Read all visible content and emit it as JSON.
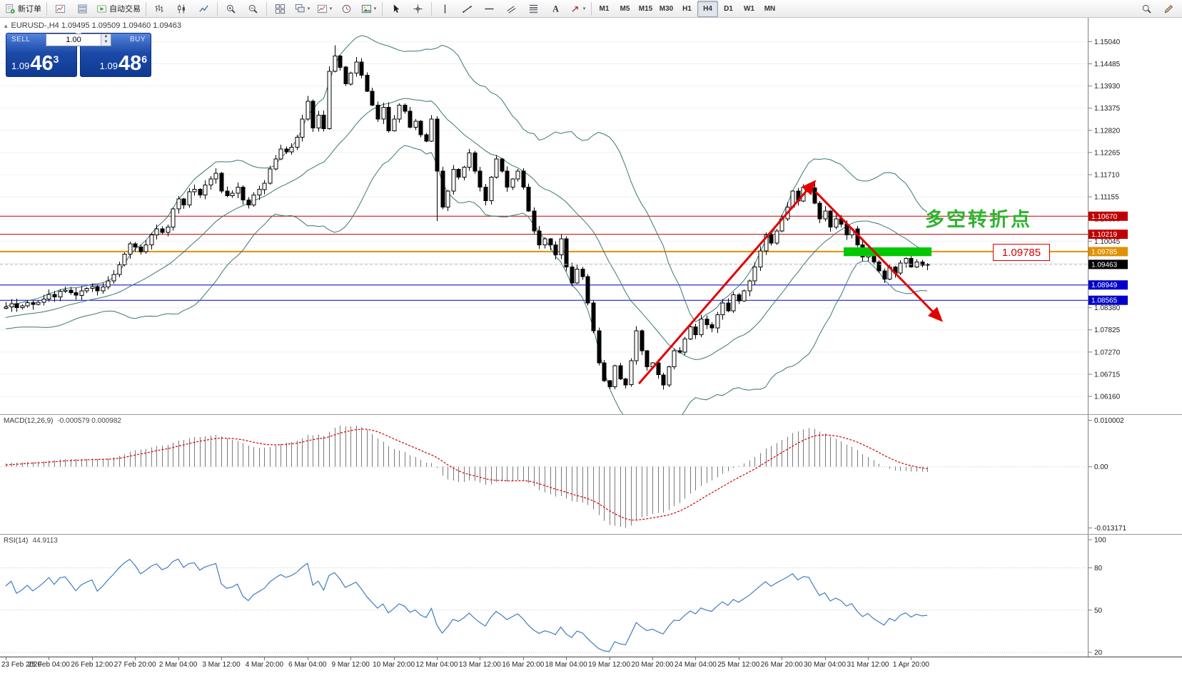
{
  "toolbar": {
    "groups": [
      [
        {
          "name": "new-order",
          "icon": "new-order",
          "label": "新订单"
        }
      ],
      [
        {
          "name": "charts",
          "icon": "chart-add"
        },
        {
          "name": "market-depth",
          "icon": "dom"
        },
        {
          "name": "autotrading",
          "icon": "autotrading",
          "label": "自动交易"
        }
      ],
      [
        {
          "name": "bar-chart-mode",
          "icon": "bar-chart"
        },
        {
          "name": "candlestick-mode",
          "icon": "candle-chart"
        },
        {
          "name": "line-chart-mode",
          "icon": "line-chart"
        }
      ],
      [
        {
          "name": "zoom-in",
          "icon": "zoom-in"
        },
        {
          "name": "zoom-out",
          "icon": "zoom-out"
        }
      ],
      [
        {
          "name": "tile-windows",
          "icon": "tile"
        },
        {
          "name": "auto-arrange",
          "icon": "cascade",
          "caret": true
        },
        {
          "name": "new-chart",
          "icon": "chart-add",
          "caret": true
        },
        {
          "name": "period-clock",
          "icon": "clock"
        },
        {
          "name": "templates",
          "icon": "template",
          "caret": true
        }
      ],
      [
        {
          "name": "cursor",
          "icon": "cursor"
        },
        {
          "name": "crosshair",
          "icon": "crosshair"
        }
      ],
      [
        {
          "name": "vertical-line",
          "icon": "vline"
        },
        {
          "name": "trendline",
          "icon": "trendline"
        },
        {
          "name": "horizontal-line",
          "icon": "hline"
        },
        {
          "name": "equidistant-channel",
          "icon": "channel"
        },
        {
          "name": "fibonacci",
          "icon": "fibo"
        },
        {
          "name": "text-label",
          "icon": "text"
        },
        {
          "name": "arrows",
          "icon": "arrows-tool",
          "caret": true
        }
      ]
    ],
    "timeframes": {
      "items": [
        "M1",
        "M5",
        "M15",
        "M30",
        "H1",
        "H4",
        "D1",
        "W1",
        "MN"
      ],
      "active": "H4"
    },
    "right": [
      {
        "name": "search",
        "icon": "search"
      },
      {
        "name": "quick-edit",
        "icon": "edit"
      }
    ]
  },
  "chart": {
    "title": "EURUSD-,H4 1.09495 1.09509 1.09460 1.09463",
    "toggle_glyph": "▴",
    "one_click": {
      "sell_label": "SELL",
      "buy_label": "BUY",
      "lot": "1.00",
      "sell_small": "1.09",
      "sell_big": "46",
      "sell_sup": "3",
      "buy_small": "1.09",
      "buy_big": "48",
      "buy_sup": "6"
    },
    "price_axis": {
      "max": 1.156,
      "min": 1.0575,
      "ticks": [
        "1.15040",
        "1.14485",
        "1.13930",
        "1.13375",
        "1.12820",
        "1.12265",
        "1.11710",
        "1.11155",
        "1.10600",
        "1.10045",
        "1.09490",
        "1.08935",
        "1.08380",
        "1.07825",
        "1.07270",
        "1.06715",
        "1.06160"
      ]
    },
    "hlines": [
      {
        "price": 1.1067,
        "label": "1.10670",
        "color": "#c00000",
        "width": 1
      },
      {
        "price": 1.10219,
        "label": "1.10219",
        "color": "#c00000",
        "width": 1
      },
      {
        "price": 1.09785,
        "label": "1.09785",
        "color": "#e09000",
        "width": 2
      },
      {
        "price": 1.08949,
        "label": "1.08949",
        "color": "#0000c8",
        "width": 1
      },
      {
        "price": 1.08565,
        "label": "1.08565",
        "color": "#0000c8",
        "width": 1
      }
    ],
    "price_tags": [
      {
        "label": "1.10670",
        "price": 1.1067,
        "bg": "#c00000"
      },
      {
        "label": "1.10219",
        "price": 1.10219,
        "bg": "#c00000"
      },
      {
        "label": "1.09785",
        "price": 1.09785,
        "bg": "#e09000"
      },
      {
        "label": "1.09463",
        "price": 1.09463,
        "bg": "#000000"
      },
      {
        "label": "1.08949",
        "price": 1.08949,
        "bg": "#0000c8"
      },
      {
        "label": "1.08565",
        "price": 1.08565,
        "bg": "#0000c8"
      }
    ],
    "current_price": 1.09463,
    "current_price_line_color": "#b8b8b8",
    "rectangle": {
      "from_bar": 155.5,
      "to_bar": 171.8,
      "top_price": 1.0989,
      "bottom_price": 1.0967,
      "color": "#00c800"
    },
    "arrows": [
      {
        "from_bar": 117.5,
        "from_price": 1.0648,
        "to_bar": 150,
        "to_price": 1.1152,
        "color": "#e00000",
        "width": 3
      },
      {
        "from_bar": 150.3,
        "from_price": 1.1128,
        "to_bar": 173.5,
        "to_price": 1.0808,
        "color": "#e00000",
        "width": 3
      }
    ],
    "annotation": {
      "text": "多空转折点",
      "color": "#2db32d"
    },
    "float_label": {
      "text": "1.09785",
      "color": "#d40000"
    }
  },
  "macd": {
    "label": "MACD(12,26,9)",
    "values": "-0.000579 0.000982",
    "scale_max": 0.0107,
    "scale_min": -0.014,
    "axis_labels": [
      {
        "label": "0.010002",
        "value": 0.010002
      },
      {
        "label": "0.00",
        "value": 0
      },
      {
        "label": "-0.013171",
        "value": -0.013171
      }
    ],
    "histogram_color": "#7a7a7a",
    "signal_color": "#d40000"
  },
  "rsi": {
    "label": "RSI(14)",
    "value": "44.9113",
    "line_color": "#3f7cc4",
    "levels": [
      {
        "label": "100",
        "value": 100,
        "line": false
      },
      {
        "label": "80",
        "value": 80,
        "line": true
      },
      {
        "label": "50",
        "value": 50,
        "line": true
      },
      {
        "label": "20",
        "value": 20,
        "line": true
      }
    ]
  },
  "time_axis": {
    "step_bars": 8,
    "labels": [
      "23 Feb 2020",
      "25 Feb 04:00",
      "26 Feb 12:00",
      "27 Feb 20:00",
      "2 Mar 04:00",
      "3 Mar 12:00",
      "4 Mar 20:00",
      "6 Mar 04:00",
      "9 Mar 12:00",
      "10 Mar 20:00",
      "12 Mar 04:00",
      "13 Mar 12:00",
      "16 Mar 20:00",
      "18 Mar 04:00",
      "19 Mar 12:00",
      "20 Mar 20:00",
      "24 Mar 04:00",
      "25 Mar 12:00",
      "26 Mar 20:00",
      "30 Mar 04:00",
      "31 Mar 12:00",
      "1 Apr 20:00"
    ]
  },
  "chart_data": {
    "type": "candlestick",
    "symbol": "EURUSD-",
    "timeframe": "H4",
    "ohlc_display": {
      "open": "1.09495",
      "high": "1.09509",
      "low": "1.09460",
      "close": "1.09463"
    },
    "first_open": 1.0836,
    "pre_closes": [
      1.0812,
      1.0818,
      1.081,
      1.0806,
      1.0801,
      1.0798,
      1.0804,
      1.0809,
      1.0815,
      1.0808,
      1.0802,
      1.0798,
      1.0795,
      1.08,
      1.0806,
      1.0812,
      1.0818,
      1.0811,
      1.0805,
      1.0799,
      1.0794,
      1.079,
      1.0796,
      1.0803,
      1.0809,
      1.0815,
      1.0821,
      1.0816,
      1.081,
      1.0805,
      1.0799,
      1.0795,
      1.0801,
      1.0808,
      1.0814,
      1.082,
      1.0826,
      1.0832,
      1.083,
      1.0836
    ],
    "closes": [
      1.084,
      1.0848,
      1.0838,
      1.0843,
      1.0851,
      1.0846,
      1.0852,
      1.086,
      1.0871,
      1.0865,
      1.0879,
      1.0882,
      1.0876,
      1.0869,
      1.088,
      1.0886,
      1.0891,
      1.088,
      1.089,
      1.0905,
      1.0921,
      1.0945,
      1.0972,
      1.0998,
      1.099,
      1.0978,
      1.0995,
      1.102,
      1.1035,
      1.1026,
      1.104,
      1.1085,
      1.111,
      1.1095,
      1.1128,
      1.1134,
      1.112,
      1.1145,
      1.116,
      1.1175,
      1.113,
      1.1118,
      1.1125,
      1.114,
      1.1108,
      1.1095,
      1.112,
      1.1134,
      1.115,
      1.1185,
      1.121,
      1.1235,
      1.1228,
      1.124,
      1.1265,
      1.131,
      1.1355,
      1.1288,
      1.132,
      1.1286,
      1.143,
      1.1468,
      1.144,
      1.1398,
      1.1425,
      1.1453,
      1.142,
      1.138,
      1.1345,
      1.131,
      1.134,
      1.1281,
      1.131,
      1.1345,
      1.133,
      1.129,
      1.1305,
      1.1271,
      1.1255,
      1.131,
      1.118,
      1.109,
      1.113,
      1.1184,
      1.1165,
      1.119,
      1.1225,
      1.118,
      1.114,
      1.1106,
      1.1165,
      1.121,
      1.118,
      1.114,
      1.116,
      1.118,
      1.114,
      1.108,
      1.103,
      1.0995,
      1.101,
      1.0995,
      1.097,
      1.101,
      1.094,
      1.09,
      1.0935,
      1.0916,
      1.085,
      1.078,
      1.07,
      1.0655,
      1.064,
      1.0693,
      1.066,
      1.0645,
      1.0705,
      1.078,
      1.073,
      1.069,
      1.07,
      1.067,
      1.0645,
      1.069,
      1.073,
      1.0727,
      1.076,
      1.079,
      1.077,
      1.081,
      1.0795,
      1.0787,
      1.082,
      1.085,
      1.083,
      1.087,
      1.0855,
      1.088,
      1.0905,
      1.094,
      1.098,
      1.102,
      1.1,
      1.103,
      1.106,
      1.109,
      1.113,
      1.1105,
      1.114,
      1.1138,
      1.11,
      1.106,
      1.108,
      1.104,
      1.106,
      1.1047,
      1.102,
      1.1035,
      1.0995,
      1.0965,
      1.098,
      1.0952,
      1.093,
      1.091,
      1.094,
      1.0925,
      1.095,
      1.0961,
      1.094,
      1.0952,
      1.0944,
      1.09463
    ],
    "wick_overrides": {
      "56": {
        "h": 1.1368
      },
      "61": {
        "h": 1.1495
      },
      "80": {
        "l": 1.1055
      },
      "112": {
        "l": 1.0637
      },
      "115": {
        "l": 1.0636
      },
      "122": {
        "l": 1.0635
      },
      "148": {
        "h": 1.1147
      }
    },
    "bollinger": {
      "period": 20,
      "deviation": 2,
      "color": "#3d7676"
    },
    "macd_params": {
      "fast": 12,
      "slow": 26,
      "signal": 9
    },
    "rsi_period": 14
  }
}
